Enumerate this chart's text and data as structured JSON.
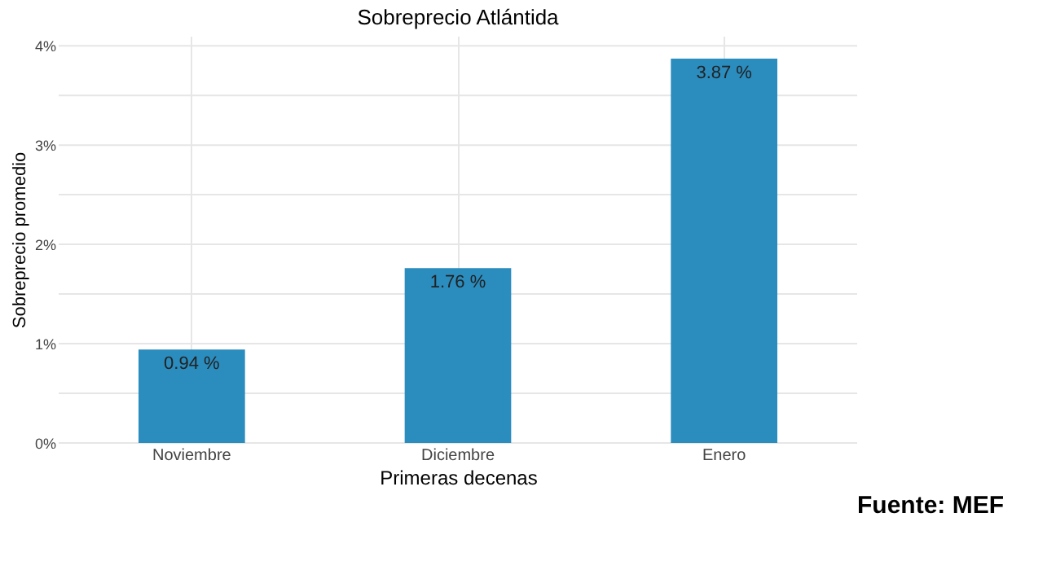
{
  "chart_data": {
    "type": "bar",
    "title": "Sobreprecio Atlántida",
    "xlabel": "Primeras decenas",
    "ylabel": "Sobreprecio promedio",
    "categories": [
      "Noviembre",
      "Diciembre",
      "Enero"
    ],
    "values": [
      0.94,
      1.76,
      3.87
    ],
    "color": "#2b8cbe",
    "value_labels": [
      "0.94 %",
      "1.76 %",
      "3.87 %"
    ],
    "ylim": [
      0,
      4.1
    ],
    "yticks": [
      {
        "value": 0,
        "label": "0%"
      },
      {
        "value": 0.5,
        "label": null
      },
      {
        "value": 1,
        "label": "1%"
      },
      {
        "value": 1.5,
        "label": null
      },
      {
        "value": 2,
        "label": "2%"
      },
      {
        "value": 2.5,
        "label": null
      },
      {
        "value": 3,
        "label": "3%"
      },
      {
        "value": 3.5,
        "label": null
      },
      {
        "value": 4,
        "label": "4%"
      }
    ],
    "grid": true,
    "annotations": [
      "Fuente: MEF"
    ]
  }
}
